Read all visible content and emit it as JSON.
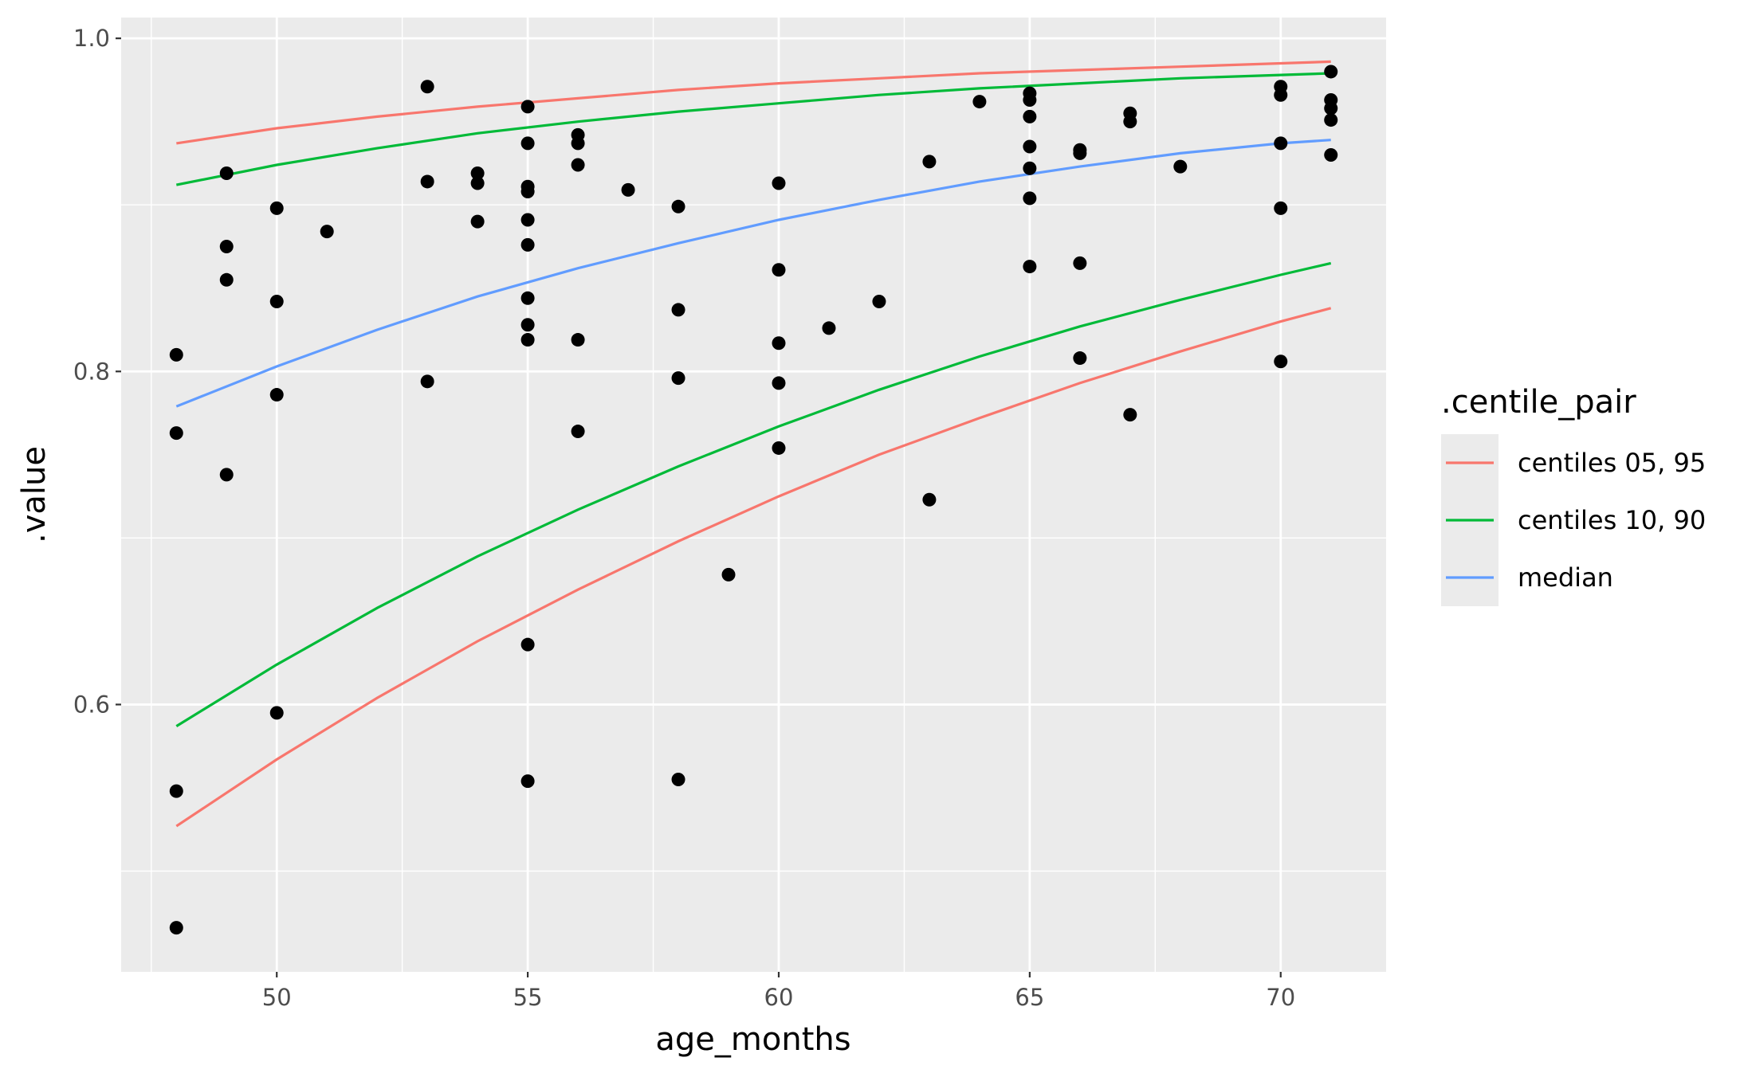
{
  "chart_data": {
    "type": "scatter",
    "xlabel": "age_months",
    "ylabel": ".value",
    "xlim": [
      46.9,
      72.1
    ],
    "ylim": [
      0.4395,
      1.0125
    ],
    "x_ticks": [
      50,
      55,
      60,
      65,
      70
    ],
    "x_minor_ticks": [
      47.5,
      52.5,
      57.5,
      62.5,
      67.5
    ],
    "y_ticks": [
      0.6,
      0.8,
      1.0
    ],
    "y_tick_labels": [
      "0.6",
      "0.8",
      "1.0"
    ],
    "y_minor_ticks": [
      0.5,
      0.7,
      0.9
    ],
    "grid": true,
    "panel_background": "#ebebeb",
    "legend": {
      "title": ".centile_pair",
      "position": "right",
      "entries": [
        {
          "label": "centiles 05, 95",
          "color": "#F8766D"
        },
        {
          "label": "centiles 10, 90",
          "color": "#00BA38"
        },
        {
          "label": "median",
          "color": "#619CFF"
        }
      ]
    },
    "curves": [
      {
        "group": "centiles 05, 95",
        "color": "#F8766D",
        "x": [
          48,
          50,
          52,
          54,
          56,
          58,
          60,
          62,
          64,
          66,
          68,
          70,
          71
        ],
        "y": [
          0.937,
          0.946,
          0.953,
          0.959,
          0.964,
          0.969,
          0.973,
          0.976,
          0.979,
          0.981,
          0.983,
          0.985,
          0.986
        ]
      },
      {
        "group": "centiles 05, 95",
        "color": "#F8766D",
        "x": [
          48,
          50,
          52,
          54,
          56,
          58,
          60,
          62,
          64,
          66,
          68,
          70,
          71
        ],
        "y": [
          0.527,
          0.567,
          0.604,
          0.638,
          0.669,
          0.698,
          0.725,
          0.75,
          0.772,
          0.793,
          0.812,
          0.83,
          0.838
        ]
      },
      {
        "group": "centiles 10, 90",
        "color": "#00BA38",
        "x": [
          48,
          50,
          52,
          54,
          56,
          58,
          60,
          62,
          64,
          66,
          68,
          70,
          71
        ],
        "y": [
          0.912,
          0.924,
          0.934,
          0.943,
          0.95,
          0.956,
          0.961,
          0.966,
          0.97,
          0.973,
          0.976,
          0.978,
          0.979
        ]
      },
      {
        "group": "centiles 10, 90",
        "color": "#00BA38",
        "x": [
          48,
          50,
          52,
          54,
          56,
          58,
          60,
          62,
          64,
          66,
          68,
          70,
          71
        ],
        "y": [
          0.587,
          0.624,
          0.658,
          0.689,
          0.717,
          0.743,
          0.767,
          0.789,
          0.809,
          0.827,
          0.843,
          0.858,
          0.865
        ]
      },
      {
        "group": "median",
        "color": "#619CFF",
        "x": [
          48,
          50,
          52,
          54,
          56,
          58,
          60,
          62,
          64,
          66,
          68,
          70,
          71
        ],
        "y": [
          0.779,
          0.803,
          0.825,
          0.845,
          0.862,
          0.877,
          0.891,
          0.903,
          0.914,
          0.923,
          0.931,
          0.937,
          0.939
        ]
      }
    ],
    "points": {
      "x": [
        48,
        48,
        48,
        48,
        49,
        49,
        49,
        49,
        50,
        50,
        50,
        50,
        51,
        53,
        53,
        53,
        54,
        54,
        54,
        55,
        55,
        55,
        55,
        55,
        55,
        55,
        55,
        55,
        55,
        55,
        56,
        56,
        56,
        56,
        56,
        57,
        58,
        58,
        58,
        58,
        59,
        60,
        60,
        60,
        60,
        60,
        61,
        62,
        63,
        63,
        64,
        65,
        65,
        65,
        65,
        65,
        65,
        65,
        66,
        66,
        66,
        66,
        67,
        67,
        67,
        68,
        70,
        70,
        70,
        70,
        70,
        71,
        71,
        71,
        71,
        71
      ],
      "y": [
        0.81,
        0.763,
        0.548,
        0.466,
        0.919,
        0.875,
        0.855,
        0.738,
        0.898,
        0.842,
        0.786,
        0.595,
        0.884,
        0.971,
        0.914,
        0.794,
        0.919,
        0.913,
        0.89,
        0.959,
        0.937,
        0.911,
        0.908,
        0.891,
        0.876,
        0.844,
        0.828,
        0.819,
        0.636,
        0.554,
        0.942,
        0.937,
        0.924,
        0.819,
        0.764,
        0.909,
        0.899,
        0.837,
        0.796,
        0.555,
        0.678,
        0.913,
        0.861,
        0.817,
        0.793,
        0.754,
        0.826,
        0.842,
        0.926,
        0.723,
        0.962,
        0.967,
        0.963,
        0.953,
        0.935,
        0.922,
        0.904,
        0.863,
        0.933,
        0.931,
        0.865,
        0.808,
        0.955,
        0.95,
        0.774,
        0.923,
        0.971,
        0.966,
        0.937,
        0.898,
        0.806,
        0.98,
        0.963,
        0.958,
        0.951,
        0.93
      ]
    }
  }
}
